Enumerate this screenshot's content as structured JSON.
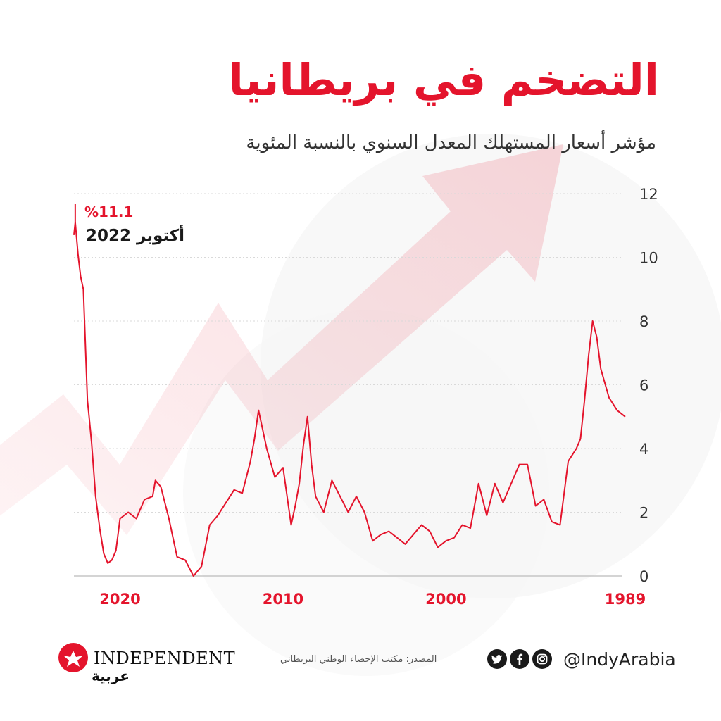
{
  "header": {
    "title": "التضخم في بريطانيا",
    "subtitle": "مؤشر أسعار المستهلك المعدل السنوي بالنسبة المئوية"
  },
  "chart_data": {
    "type": "line",
    "title": "التضخم في بريطانيا",
    "subtitle": "مؤشر أسعار المستهلك المعدل السنوي بالنسبة المئوية",
    "xlabel": "",
    "ylabel": "",
    "x_direction": "right-to-left",
    "xlim": [
      1989,
      2022.83
    ],
    "ylim": [
      0,
      12
    ],
    "y_ticks": [
      "0",
      "2",
      "4",
      "6",
      "8",
      "10",
      "12"
    ],
    "x_ticks": [
      "1989",
      "2000",
      "2010",
      "2020"
    ],
    "grid": true,
    "line_color": "#e4142c",
    "series": [
      {
        "x": [
          1989.0,
          1989.5,
          1990.0,
          1990.5,
          1990.75,
          1991.0,
          1991.25,
          1991.5,
          1991.75,
          1992.0,
          1992.5,
          1993.0,
          1993.5,
          1994.0,
          1994.5,
          1995.0,
          1995.5,
          1996.0,
          1996.5,
          1997.0,
          1997.5,
          1998.0,
          1998.5,
          1999.0,
          1999.5,
          2000.0,
          2000.5,
          2001.0,
          2001.5,
          2002.0,
          2002.5,
          2003.0,
          2003.5,
          2004.0,
          2004.5,
          2005.0,
          2005.5,
          2006.0,
          2006.5,
          2007.0,
          2007.5,
          2008.0,
          2008.25,
          2008.5,
          2008.75,
          2009.0,
          2009.25,
          2009.5,
          2010.0,
          2010.5,
          2011.0,
          2011.5,
          2011.75,
          2012.0,
          2012.5,
          2013.0,
          2013.5,
          2014.0,
          2014.5,
          2015.0,
          2015.5,
          2016.0,
          2016.5,
          2017.0,
          2017.5,
          2017.83,
          2018.0,
          2018.5,
          2019.0,
          2019.5,
          2020.0,
          2020.25,
          2020.5,
          2020.75,
          2021.0,
          2021.25,
          2021.5,
          2021.75,
          2021.92,
          2022.0,
          2022.25,
          2022.42,
          2022.58,
          2022.75,
          2022.83
        ],
        "y": [
          5.0,
          5.2,
          5.6,
          6.5,
          7.5,
          8.0,
          6.9,
          5.5,
          4.3,
          4.0,
          3.6,
          1.6,
          1.7,
          2.4,
          2.2,
          3.5,
          3.5,
          2.9,
          2.3,
          2.9,
          1.9,
          2.9,
          1.5,
          1.6,
          1.2,
          1.1,
          0.9,
          1.4,
          1.6,
          1.3,
          1.0,
          1.2,
          1.4,
          1.3,
          1.1,
          2.0,
          2.5,
          2.0,
          2.5,
          3.0,
          2.0,
          2.5,
          3.5,
          5.0,
          4.1,
          2.9,
          2.2,
          1.6,
          3.4,
          3.1,
          4.0,
          5.2,
          4.3,
          3.6,
          2.6,
          2.7,
          2.3,
          1.9,
          1.6,
          0.3,
          0.0,
          0.5,
          0.6,
          1.8,
          2.8,
          3.0,
          2.5,
          2.4,
          1.8,
          2.0,
          1.8,
          0.8,
          0.5,
          0.4,
          0.7,
          1.5,
          2.5,
          4.2,
          5.1,
          5.5,
          9.0,
          9.4,
          10.1,
          11.1,
          10.7
        ]
      }
    ],
    "annotation": {
      "value_label": "%11.1",
      "date_label": "أكتوبر 2022"
    }
  },
  "footer": {
    "source": "المصدر: مكتب الإحصاء الوطني البريطاني",
    "handle": "@IndyArabia",
    "logo_word": "INDEPENDENT",
    "logo_arabic": "عربية",
    "social_icons": [
      "instagram-icon",
      "facebook-icon",
      "twitter-icon"
    ]
  },
  "colors": {
    "accent": "#e4142c",
    "text": "#222222",
    "grid": "#d9d9d9",
    "axis": "#bbbbbb"
  }
}
